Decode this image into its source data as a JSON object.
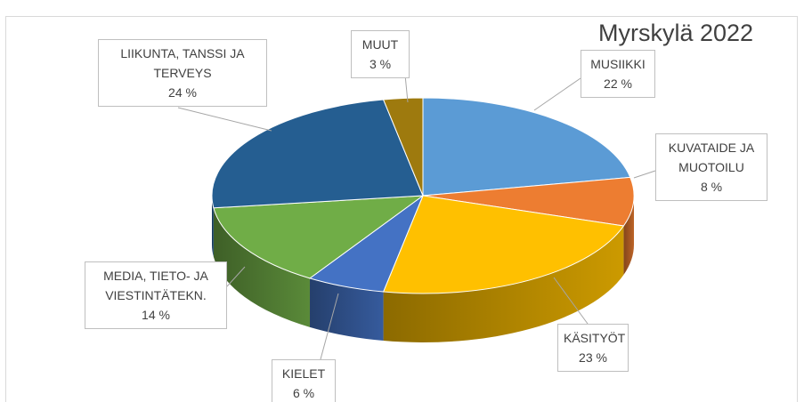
{
  "chart_data": {
    "type": "pie",
    "title": "Myrskylä 2022",
    "categories": [
      "MUSIIKKI",
      "KUVATAIDE JA MUOTOILU",
      "KÄSITYÖT",
      "KIELET",
      "MEDIA, TIETO- JA VIESTINTÄTEKN.",
      "LIIKUNTA, TANSSI JA TERVEYS",
      "MUUT"
    ],
    "values": [
      22,
      8,
      23,
      6,
      14,
      24,
      3
    ],
    "value_labels": [
      "22 %",
      "8 %",
      "23 %",
      "6 %",
      "14 %",
      "24 %",
      "3 %"
    ],
    "colors": [
      "#5b9bd5",
      "#ed7d31",
      "#ffc000",
      "#4472c4",
      "#70ad47",
      "#255e91",
      "#9e7a0e"
    ]
  }
}
